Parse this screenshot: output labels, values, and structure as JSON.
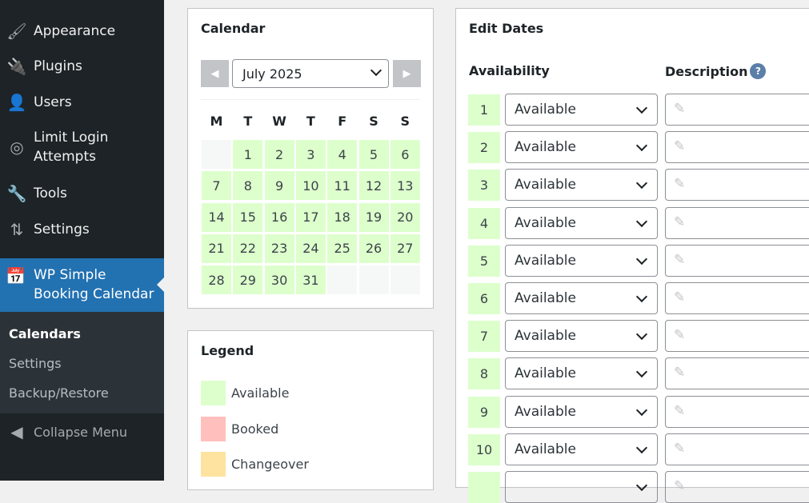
{
  "sidebar": {
    "items": [
      {
        "label": "Appearance",
        "icon": "paintbrush-icon"
      },
      {
        "label": "Plugins",
        "icon": "plug-icon"
      },
      {
        "label": "Users",
        "icon": "user-icon"
      },
      {
        "label": "Limit Login Attempts",
        "icon": "fingerprint-icon"
      },
      {
        "label": "Tools",
        "icon": "wrench-icon"
      },
      {
        "label": "Settings",
        "icon": "settings-icon"
      }
    ],
    "active": "WP Simple Booking Calendar",
    "submenu": [
      "Calendars",
      "Settings",
      "Backup/Restore"
    ],
    "collapse": "Collapse Menu"
  },
  "calendar": {
    "title": "Calendar",
    "month": "July 2025",
    "weekdays": [
      "M",
      "T",
      "W",
      "T",
      "F",
      "S",
      "S"
    ],
    "first_offset": 1,
    "days": 31
  },
  "legend": {
    "title": "Legend",
    "items": [
      {
        "label": "Available",
        "color": "#ddffcc"
      },
      {
        "label": "Booked",
        "color": "#ffc0bd"
      },
      {
        "label": "Changeover",
        "color": "#fee2a0"
      }
    ]
  },
  "edit": {
    "title": "Edit Dates",
    "col_availability": "Availability",
    "col_description": "Description",
    "help": "?",
    "rows": [
      {
        "day": "1",
        "status": "Available"
      },
      {
        "day": "2",
        "status": "Available"
      },
      {
        "day": "3",
        "status": "Available"
      },
      {
        "day": "4",
        "status": "Available"
      },
      {
        "day": "5",
        "status": "Available"
      },
      {
        "day": "6",
        "status": "Available"
      },
      {
        "day": "7",
        "status": "Available"
      },
      {
        "day": "8",
        "status": "Available"
      },
      {
        "day": "9",
        "status": "Available"
      },
      {
        "day": "10",
        "status": "Available"
      }
    ]
  }
}
